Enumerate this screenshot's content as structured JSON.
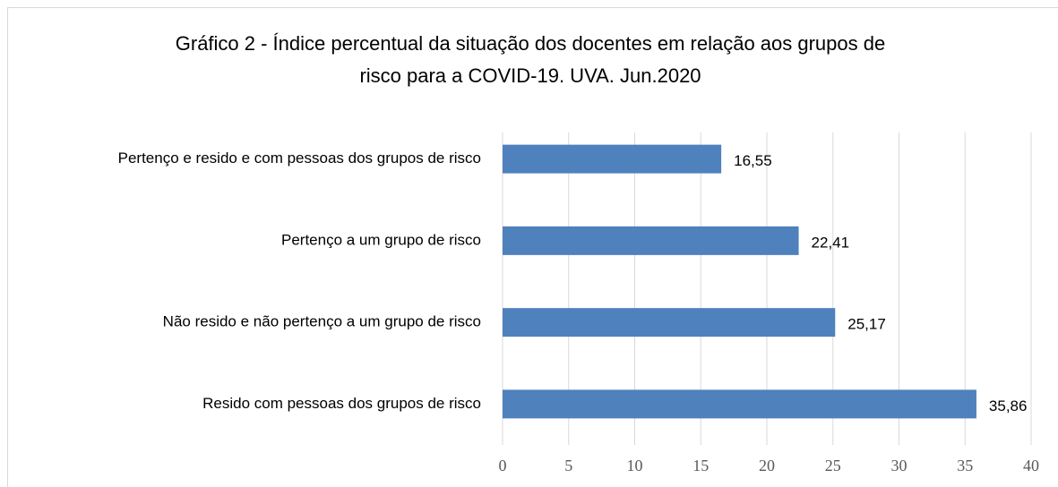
{
  "chart_data": {
    "type": "bar",
    "orientation": "horizontal",
    "title": [
      "Gráfico 2 - Índice percentual da situação dos docentes em relação aos grupos de",
      "risco para a COVID-19. UVA. Jun.2020"
    ],
    "categories": [
      "Pertenço e resido e com pessoas dos grupos de risco",
      "Pertenço a um grupo de risco",
      "Não resido e não pertenço a um grupo de risco",
      "Resido com pessoas dos grupos de risco"
    ],
    "values": [
      16.55,
      22.41,
      25.17,
      35.86
    ],
    "value_labels": [
      "16,55",
      "22,41",
      "25,17",
      "35,86"
    ],
    "color": "#4f81bd",
    "xlim": [
      0,
      40
    ],
    "xticks": [
      0,
      5,
      10,
      15,
      20,
      25,
      30,
      35,
      40
    ],
    "grid": true
  }
}
